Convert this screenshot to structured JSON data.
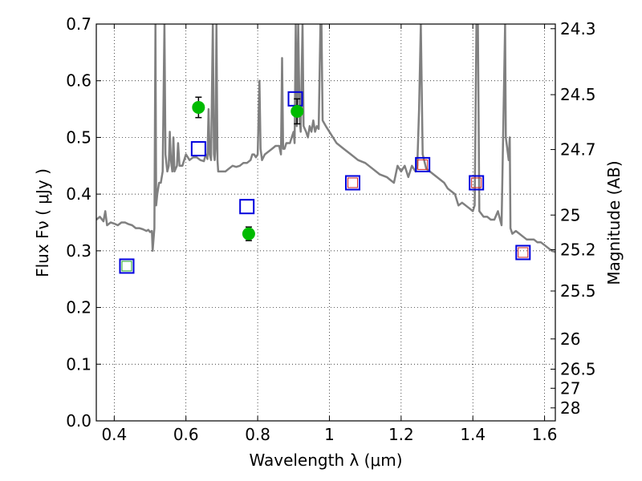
{
  "chart_data": {
    "type": "scatter",
    "xlabel": "Wavelength  λ (μm)",
    "ylabel_left": "Flux  Fν  ( μJy )",
    "ylabel_right": "Magnitude (AB)",
    "xlim": [
      0.35,
      1.63
    ],
    "ylim": [
      0.0,
      0.7
    ],
    "x_ticks": [
      0.4,
      0.6,
      0.8,
      1.0,
      1.2,
      1.4,
      1.6
    ],
    "x_tick_labels": [
      "0.4",
      "0.6",
      "0.8",
      "1",
      "1.2",
      "1.4",
      "1.6"
    ],
    "y_ticks": [
      0.0,
      0.1,
      0.2,
      0.3,
      0.4,
      0.5,
      0.6,
      0.7
    ],
    "y_tick_labels": [
      "0.0",
      "0.1",
      "0.2",
      "0.3",
      "0.4",
      "0.5",
      "0.6",
      "0.7"
    ],
    "right_tick_labels": [
      {
        "mag": 24.3,
        "label": "24.3"
      },
      {
        "mag": 24.5,
        "label": "24.5"
      },
      {
        "mag": 24.7,
        "label": "24.7"
      },
      {
        "mag": 25.0,
        "label": "25"
      },
      {
        "mag": 25.2,
        "label": "25.2"
      },
      {
        "mag": 25.5,
        "label": "25.5"
      },
      {
        "mag": 26.0,
        "label": "26"
      },
      {
        "mag": 26.5,
        "label": "26.5"
      },
      {
        "mag": 27.0,
        "label": "27"
      },
      {
        "mag": 28.0,
        "label": "28"
      }
    ],
    "grid": true,
    "colors": {
      "spectrum": "#808080",
      "observed": "#00bb00",
      "model_box": "#0000dd",
      "inner_green": "#22aa22",
      "inner_red": "#cc2222",
      "errorbar": "#000000"
    },
    "spectrum": [
      [
        0.35,
        0.355
      ],
      [
        0.36,
        0.36
      ],
      [
        0.37,
        0.352
      ],
      [
        0.375,
        0.37
      ],
      [
        0.38,
        0.345
      ],
      [
        0.39,
        0.35
      ],
      [
        0.4,
        0.348
      ],
      [
        0.41,
        0.345
      ],
      [
        0.42,
        0.35
      ],
      [
        0.43,
        0.35
      ],
      [
        0.44,
        0.347
      ],
      [
        0.45,
        0.345
      ],
      [
        0.46,
        0.34
      ],
      [
        0.47,
        0.34
      ],
      [
        0.48,
        0.338
      ],
      [
        0.49,
        0.335
      ],
      [
        0.495,
        0.337
      ],
      [
        0.5,
        0.333
      ],
      [
        0.505,
        0.335
      ],
      [
        0.507,
        0.3
      ],
      [
        0.512,
        0.34
      ],
      [
        0.515,
        0.7
      ],
      [
        0.517,
        0.38
      ],
      [
        0.52,
        0.4
      ],
      [
        0.525,
        0.42
      ],
      [
        0.53,
        0.42
      ],
      [
        0.535,
        0.44
      ],
      [
        0.54,
        0.7
      ],
      [
        0.543,
        0.47
      ],
      [
        0.548,
        0.44
      ],
      [
        0.552,
        0.45
      ],
      [
        0.555,
        0.51
      ],
      [
        0.558,
        0.46
      ],
      [
        0.562,
        0.44
      ],
      [
        0.565,
        0.5
      ],
      [
        0.568,
        0.44
      ],
      [
        0.575,
        0.45
      ],
      [
        0.578,
        0.49
      ],
      [
        0.582,
        0.45
      ],
      [
        0.59,
        0.45
      ],
      [
        0.6,
        0.47
      ],
      [
        0.61,
        0.46
      ],
      [
        0.62,
        0.465
      ],
      [
        0.63,
        0.465
      ],
      [
        0.64,
        0.46
      ],
      [
        0.65,
        0.458
      ],
      [
        0.655,
        0.47
      ],
      [
        0.66,
        0.462
      ],
      [
        0.663,
        0.55
      ],
      [
        0.666,
        0.47
      ],
      [
        0.67,
        0.46
      ],
      [
        0.675,
        0.7
      ],
      [
        0.678,
        0.47
      ],
      [
        0.68,
        0.46
      ],
      [
        0.682,
        0.48
      ],
      [
        0.685,
        0.7
      ],
      [
        0.688,
        0.46
      ],
      [
        0.69,
        0.44
      ],
      [
        0.7,
        0.44
      ],
      [
        0.71,
        0.44
      ],
      [
        0.72,
        0.445
      ],
      [
        0.73,
        0.45
      ],
      [
        0.74,
        0.448
      ],
      [
        0.75,
        0.45
      ],
      [
        0.76,
        0.455
      ],
      [
        0.77,
        0.455
      ],
      [
        0.78,
        0.46
      ],
      [
        0.785,
        0.47
      ],
      [
        0.79,
        0.47
      ],
      [
        0.795,
        0.465
      ],
      [
        0.8,
        0.47
      ],
      [
        0.805,
        0.6
      ],
      [
        0.808,
        0.48
      ],
      [
        0.812,
        0.46
      ],
      [
        0.82,
        0.47
      ],
      [
        0.83,
        0.475
      ],
      [
        0.84,
        0.48
      ],
      [
        0.85,
        0.485
      ],
      [
        0.86,
        0.485
      ],
      [
        0.865,
        0.47
      ],
      [
        0.868,
        0.64
      ],
      [
        0.871,
        0.48
      ],
      [
        0.875,
        0.48
      ],
      [
        0.88,
        0.49
      ],
      [
        0.885,
        0.49
      ],
      [
        0.89,
        0.49
      ],
      [
        0.895,
        0.5
      ],
      [
        0.9,
        0.51
      ],
      [
        0.903,
        0.49
      ],
      [
        0.906,
        0.7
      ],
      [
        0.909,
        0.52
      ],
      [
        0.913,
        0.7
      ],
      [
        0.917,
        0.53
      ],
      [
        0.92,
        0.51
      ],
      [
        0.925,
        0.7
      ],
      [
        0.928,
        0.52
      ],
      [
        0.935,
        0.51
      ],
      [
        0.94,
        0.5
      ],
      [
        0.945,
        0.52
      ],
      [
        0.95,
        0.51
      ],
      [
        0.955,
        0.53
      ],
      [
        0.96,
        0.51
      ],
      [
        0.965,
        0.52
      ],
      [
        0.97,
        0.515
      ],
      [
        0.975,
        0.7
      ],
      [
        0.978,
        0.7
      ],
      [
        0.981,
        0.53
      ],
      [
        0.99,
        0.52
      ],
      [
        1.0,
        0.51
      ],
      [
        1.02,
        0.49
      ],
      [
        1.04,
        0.48
      ],
      [
        1.06,
        0.47
      ],
      [
        1.08,
        0.46
      ],
      [
        1.1,
        0.455
      ],
      [
        1.12,
        0.445
      ],
      [
        1.14,
        0.435
      ],
      [
        1.16,
        0.43
      ],
      [
        1.17,
        0.425
      ],
      [
        1.18,
        0.42
      ],
      [
        1.19,
        0.45
      ],
      [
        1.2,
        0.44
      ],
      [
        1.21,
        0.45
      ],
      [
        1.22,
        0.43
      ],
      [
        1.23,
        0.45
      ],
      [
        1.24,
        0.44
      ],
      [
        1.245,
        0.45
      ],
      [
        1.25,
        0.55
      ],
      [
        1.255,
        0.7
      ],
      [
        1.26,
        0.47
      ],
      [
        1.27,
        0.445
      ],
      [
        1.28,
        0.44
      ],
      [
        1.3,
        0.43
      ],
      [
        1.32,
        0.42
      ],
      [
        1.33,
        0.41
      ],
      [
        1.35,
        0.4
      ],
      [
        1.36,
        0.38
      ],
      [
        1.37,
        0.385
      ],
      [
        1.38,
        0.38
      ],
      [
        1.39,
        0.375
      ],
      [
        1.4,
        0.37
      ],
      [
        1.405,
        0.38
      ],
      [
        1.41,
        0.7
      ],
      [
        1.414,
        0.7
      ],
      [
        1.418,
        0.37
      ],
      [
        1.43,
        0.36
      ],
      [
        1.44,
        0.36
      ],
      [
        1.45,
        0.355
      ],
      [
        1.46,
        0.355
      ],
      [
        1.47,
        0.37
      ],
      [
        1.48,
        0.345
      ],
      [
        1.49,
        0.7
      ],
      [
        1.492,
        0.5
      ],
      [
        1.5,
        0.46
      ],
      [
        1.503,
        0.5
      ],
      [
        1.505,
        0.34
      ],
      [
        1.51,
        0.33
      ],
      [
        1.52,
        0.335
      ],
      [
        1.53,
        0.33
      ],
      [
        1.54,
        0.325
      ],
      [
        1.55,
        0.32
      ],
      [
        1.56,
        0.32
      ],
      [
        1.57,
        0.32
      ],
      [
        1.58,
        0.315
      ],
      [
        1.59,
        0.315
      ],
      [
        1.6,
        0.31
      ],
      [
        1.61,
        0.305
      ],
      [
        1.62,
        0.3
      ],
      [
        1.63,
        0.298
      ]
    ],
    "observed_points": [
      {
        "x": 0.635,
        "y": 0.553,
        "err": 0.018
      },
      {
        "x": 0.775,
        "y": 0.33,
        "err": 0.012
      },
      {
        "x": 0.91,
        "y": 0.546,
        "err": 0.022
      }
    ],
    "model_boxes": [
      {
        "x": 0.435,
        "y": 0.273,
        "inner": "green"
      },
      {
        "x": 0.635,
        "y": 0.48,
        "inner": "none"
      },
      {
        "x": 0.77,
        "y": 0.378,
        "inner": "none"
      },
      {
        "x": 0.905,
        "y": 0.568,
        "inner": "none"
      },
      {
        "x": 1.065,
        "y": 0.42,
        "inner": "red"
      },
      {
        "x": 1.26,
        "y": 0.452,
        "inner": "red"
      },
      {
        "x": 1.41,
        "y": 0.42,
        "inner": "red"
      },
      {
        "x": 1.54,
        "y": 0.297,
        "inner": "red"
      }
    ]
  }
}
